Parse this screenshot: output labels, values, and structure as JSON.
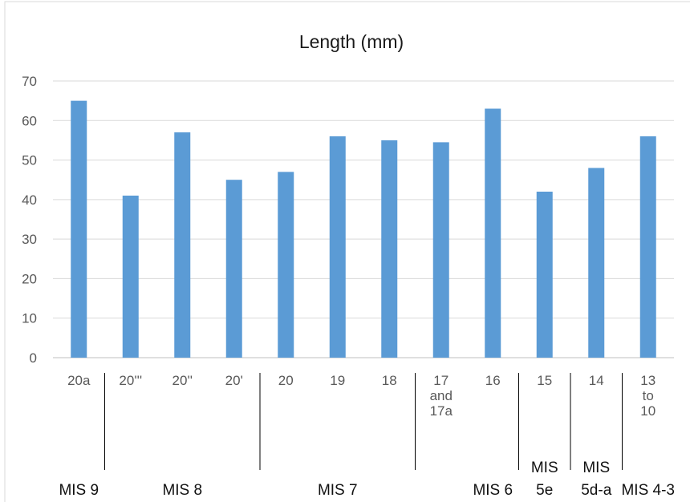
{
  "chart_data": {
    "type": "bar",
    "title": "Length (mm)",
    "xlabel": "",
    "ylabel": "",
    "ylim": [
      0,
      70
    ],
    "yticks": [
      0,
      10,
      20,
      30,
      40,
      50,
      60,
      70
    ],
    "grid": "horizontal",
    "legend": "none",
    "bar_color": "#5b9bd5",
    "categories": [
      [
        "20a"
      ],
      [
        "20'''"
      ],
      [
        "20''"
      ],
      [
        "20'"
      ],
      [
        "20"
      ],
      [
        "19"
      ],
      [
        "18"
      ],
      [
        "17",
        "and",
        "17a"
      ],
      [
        "16"
      ],
      [
        "15"
      ],
      [
        "14"
      ],
      [
        "13",
        "to",
        "10"
      ]
    ],
    "values": [
      65,
      41,
      57,
      45,
      47,
      56,
      55,
      54.5,
      63,
      42,
      48,
      56
    ],
    "groups": [
      {
        "label": [
          "MIS 9"
        ],
        "categories": [
          0
        ]
      },
      {
        "label": [
          "MIS 8"
        ],
        "categories": [
          1,
          2,
          3
        ]
      },
      {
        "label": [
          "MIS 7"
        ],
        "categories": [
          4,
          5,
          6,
          7
        ]
      },
      {
        "label": [
          "MIS 6"
        ],
        "categories": [
          7,
          8
        ]
      },
      {
        "label": [
          "MIS",
          "5e"
        ],
        "categories": [
          9
        ]
      },
      {
        "label": [
          "MIS",
          "5d-a"
        ],
        "categories": [
          10
        ]
      },
      {
        "label": [
          "MIS 4-3"
        ],
        "categories": [
          11
        ]
      }
    ]
  }
}
